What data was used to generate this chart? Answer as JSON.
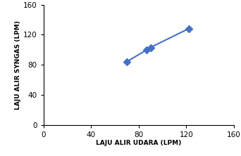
{
  "x": [
    70,
    87,
    90,
    122
  ],
  "y": [
    84,
    100,
    103,
    128
  ],
  "line_color": "#4472C4",
  "marker": "D",
  "marker_size": 5,
  "xlabel": "LAJU ALIR UDARA (LPM)",
  "ylabel": "LAJU ALIR SYNGAS (LPM)",
  "xlim": [
    0,
    160
  ],
  "ylim": [
    0,
    160
  ],
  "xticks": [
    0,
    40,
    80,
    120,
    160
  ],
  "yticks": [
    0,
    40,
    80,
    120,
    160
  ],
  "xlabel_fontsize": 6.5,
  "ylabel_fontsize": 6.5,
  "tick_fontsize": 7.5,
  "background_color": "#ffffff"
}
